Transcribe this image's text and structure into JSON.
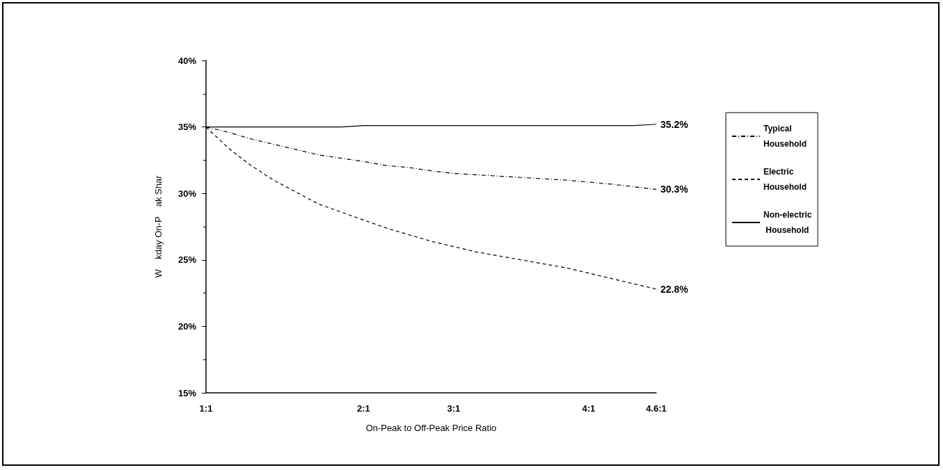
{
  "chart_data": {
    "type": "line",
    "xlabel": "On-Peak to Off-Peak Price Ratio",
    "ylabel": "W    kday On-P    ak Shar",
    "categories": [
      "1:1",
      null,
      null,
      null,
      null,
      null,
      null,
      "2:1",
      null,
      null,
      null,
      "3:1",
      null,
      null,
      null,
      null,
      null,
      "4:1",
      null,
      null,
      "4.6:1"
    ],
    "ylim": [
      15,
      40
    ],
    "yticks": [
      {
        "value": 15,
        "label": "15%"
      },
      {
        "value": 20,
        "label": "20%"
      },
      {
        "value": 25,
        "label": "25%"
      },
      {
        "value": 30,
        "label": "30%"
      },
      {
        "value": 35,
        "label": "35%"
      },
      {
        "value": 40,
        "label": "40%"
      }
    ],
    "grid": false,
    "legend": "right",
    "marker": "none",
    "series": [
      {
        "name": "Typical Household",
        "color": "#000000",
        "line_style": "dotted",
        "values": [
          35,
          34.6,
          34.1,
          33.7,
          33.3,
          32.9,
          32.65,
          32.4,
          32.1,
          31.95,
          31.7,
          31.5,
          31.4,
          31.3,
          31.2,
          31.1,
          31.0,
          30.85,
          30.7,
          30.5,
          30.3
        ],
        "value_labels": [
          null,
          null,
          null,
          null,
          null,
          null,
          null,
          null,
          null,
          null,
          null,
          null,
          null,
          null,
          null,
          null,
          null,
          null,
          null,
          null,
          "30.3%"
        ]
      },
      {
        "name": "Electric Household",
        "color": "#000000",
        "line_style": "dashed",
        "values": [
          35,
          33.4,
          32.1,
          31.0,
          30.1,
          29.2,
          28.6,
          28.0,
          27.4,
          26.9,
          26.4,
          26.0,
          25.6,
          25.3,
          25.0,
          24.7,
          24.4,
          24.0,
          23.6,
          23.2,
          22.8
        ],
        "value_labels": [
          null,
          null,
          null,
          null,
          null,
          null,
          null,
          null,
          null,
          null,
          null,
          null,
          null,
          null,
          null,
          null,
          null,
          null,
          null,
          null,
          "22.8%"
        ]
      },
      {
        "name": "Non-electric Household",
        "color": "#000000",
        "line_style": "solid",
        "values": [
          35,
          35,
          35,
          35,
          35,
          35,
          35,
          35.1,
          35.1,
          35.1,
          35.1,
          35.1,
          35.1,
          35.1,
          35.1,
          35.1,
          35.1,
          35.1,
          35.1,
          35.1,
          35.2
        ],
        "value_labels": [
          null,
          null,
          null,
          null,
          null,
          null,
          null,
          null,
          null,
          null,
          null,
          null,
          null,
          null,
          null,
          null,
          null,
          null,
          null,
          null,
          "35.2%"
        ]
      }
    ]
  }
}
